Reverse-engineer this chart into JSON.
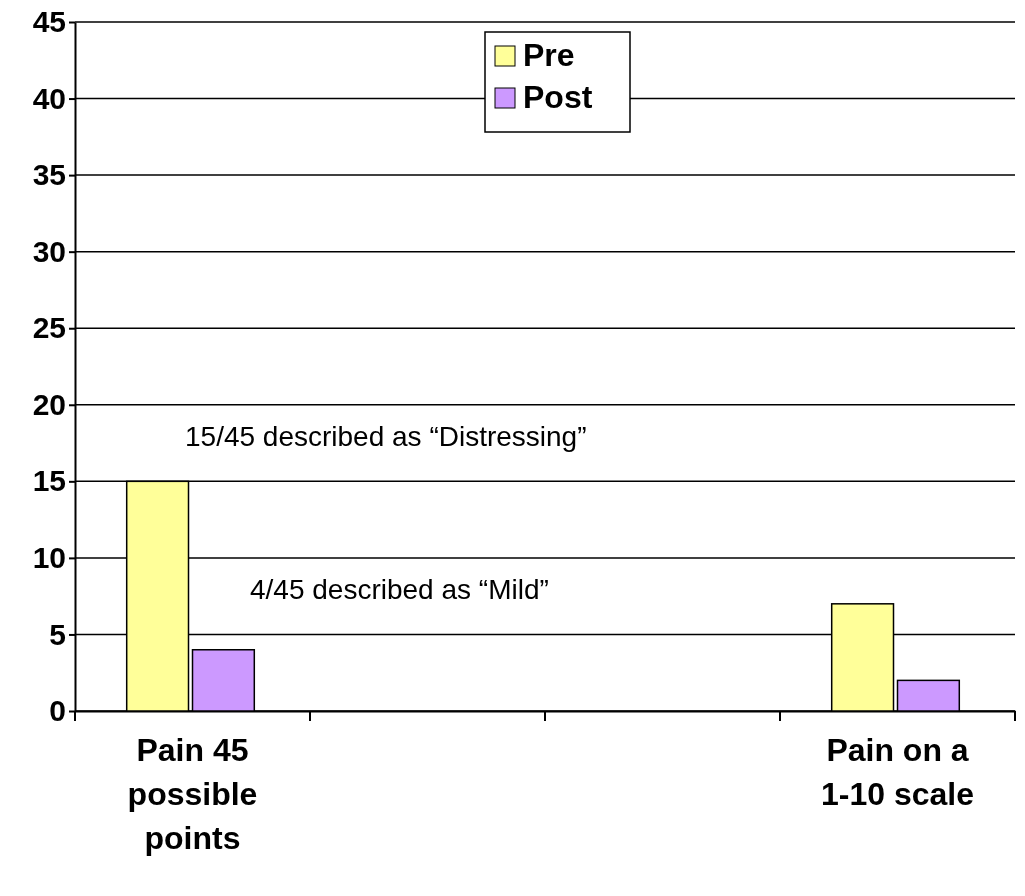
{
  "chart_data": {
    "type": "bar",
    "categories": [
      "Pain 45 possible points",
      null,
      null,
      "Pain on a 1-10 scale"
    ],
    "series": [
      {
        "name": "Pre",
        "color": "#ffff99",
        "values": [
          15,
          null,
          null,
          7
        ]
      },
      {
        "name": "Post",
        "color": "#cc99ff",
        "values": [
          4,
          null,
          null,
          2
        ]
      }
    ],
    "ylim": [
      0,
      45
    ],
    "yticks": [
      0,
      5,
      10,
      15,
      20,
      25,
      30,
      35,
      40,
      45
    ],
    "grid": "y",
    "legend": "top",
    "annotations": [
      "15/45 described as “Distressing”",
      "4/45 described as “Mild”"
    ]
  }
}
